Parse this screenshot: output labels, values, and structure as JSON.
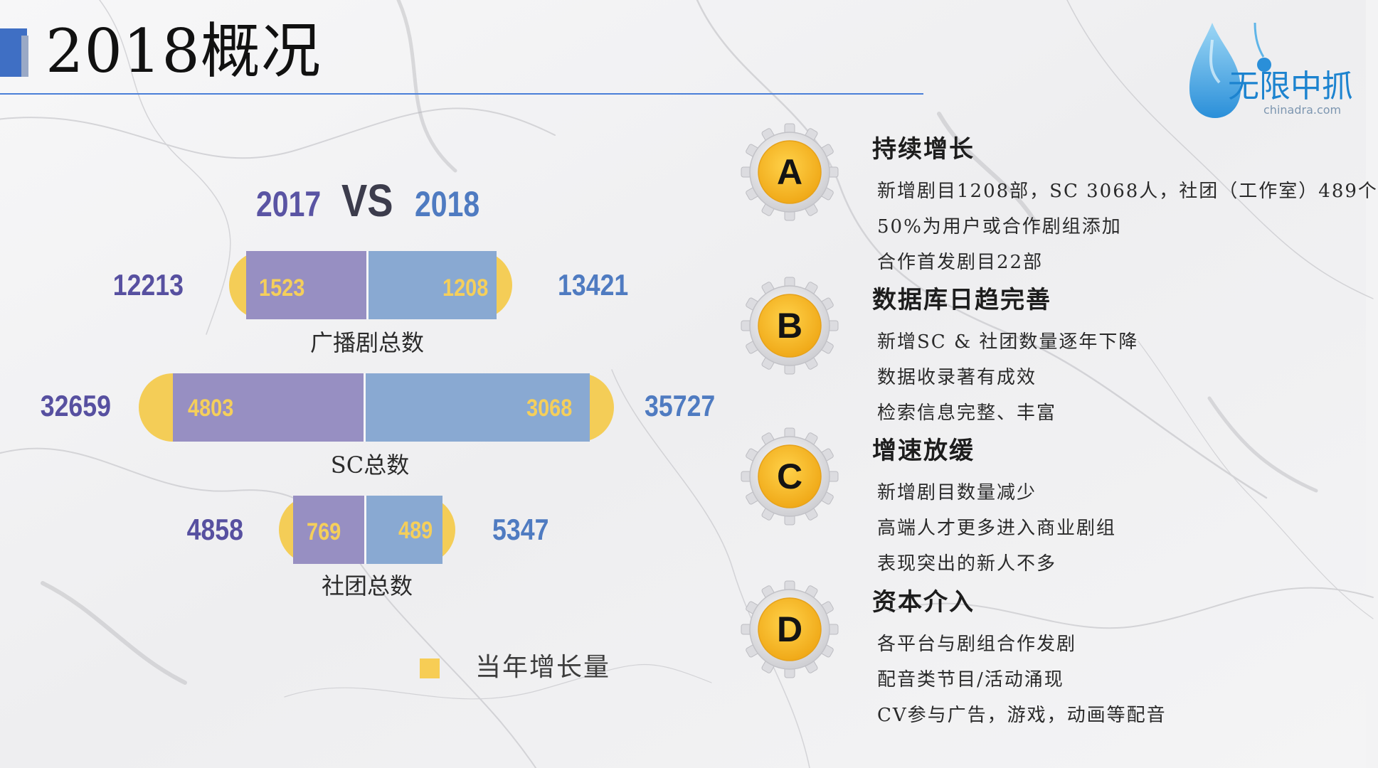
{
  "header": {
    "title": "2018概况"
  },
  "logo": {
    "name": "无限中抓",
    "domain": "chinadra.com"
  },
  "comparison": {
    "year_old": "2017",
    "vs": "VS",
    "year_new": "2018",
    "rows": [
      {
        "label": "广播剧总数",
        "total_2017": "12213",
        "increase_2017": "1523",
        "increase_2018": "1208",
        "total_2018": "13421"
      },
      {
        "label": "SC总数",
        "total_2017": "32659",
        "increase_2017": "4803",
        "increase_2018": "3068",
        "total_2018": "35727"
      },
      {
        "label": "社团总数",
        "total_2017": "4858",
        "increase_2017": "769",
        "increase_2018": "489",
        "total_2018": "5347"
      }
    ],
    "legend": {
      "label": "当年增长量",
      "color": "#f7cd55"
    }
  },
  "colors": {
    "series_2017": "#978fc2",
    "series_2018": "#89a9d2",
    "increase": "#f4cd57",
    "accent": "#3f6fc4"
  },
  "sections": [
    {
      "letter": "A",
      "title": "持续增长",
      "lines": [
        "新增剧目1208部，SC 3068人，社团（工作室）489个",
        "50%为用户或合作剧组添加",
        "合作首发剧目22部"
      ]
    },
    {
      "letter": "B",
      "title": "数据库日趋完善",
      "lines": [
        "新增SC & 社团数量逐年下降",
        "数据收录著有成效",
        "检索信息完整、丰富"
      ]
    },
    {
      "letter": "C",
      "title": "增速放缓",
      "lines": [
        "新增剧目数量减少",
        "高端人才更多进入商业剧组",
        "表现突出的新人不多"
      ]
    },
    {
      "letter": "D",
      "title": "资本介入",
      "lines": [
        "各平台与剧组合作发剧",
        "配音类节目/活动涌现",
        "CV参与广告，游戏，动画等配音"
      ]
    }
  ]
}
